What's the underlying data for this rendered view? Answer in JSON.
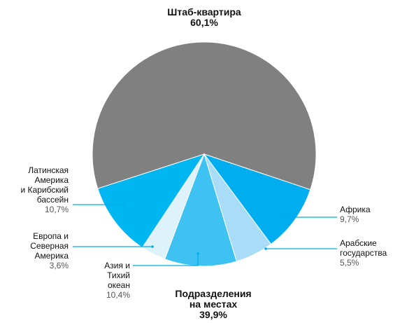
{
  "chart_data": {
    "type": "pie",
    "categories": [
      "Штаб-квартира",
      "Африка",
      "Арабские\nгосударства",
      "Азия и\nТихий\nокеан",
      "Европа и\nСеверная\nАмерика",
      "Латинская\nАмерика\nи Карибский\nбассейн"
    ],
    "values": [
      60.1,
      9.7,
      5.5,
      10.4,
      3.6,
      10.7
    ],
    "value_labels": [
      "60,1%",
      "9,7%",
      "5,5%",
      "10,4%",
      "3,6%",
      "10,7%"
    ],
    "colors": [
      "#808080",
      "#00adee",
      "#a9dcf6",
      "#3ec2f1",
      "#def2fb",
      "#00b6f0"
    ],
    "group_label": {
      "name": "Подразделения\nна местах",
      "value": 39.9,
      "value_label": "39,9%"
    }
  }
}
